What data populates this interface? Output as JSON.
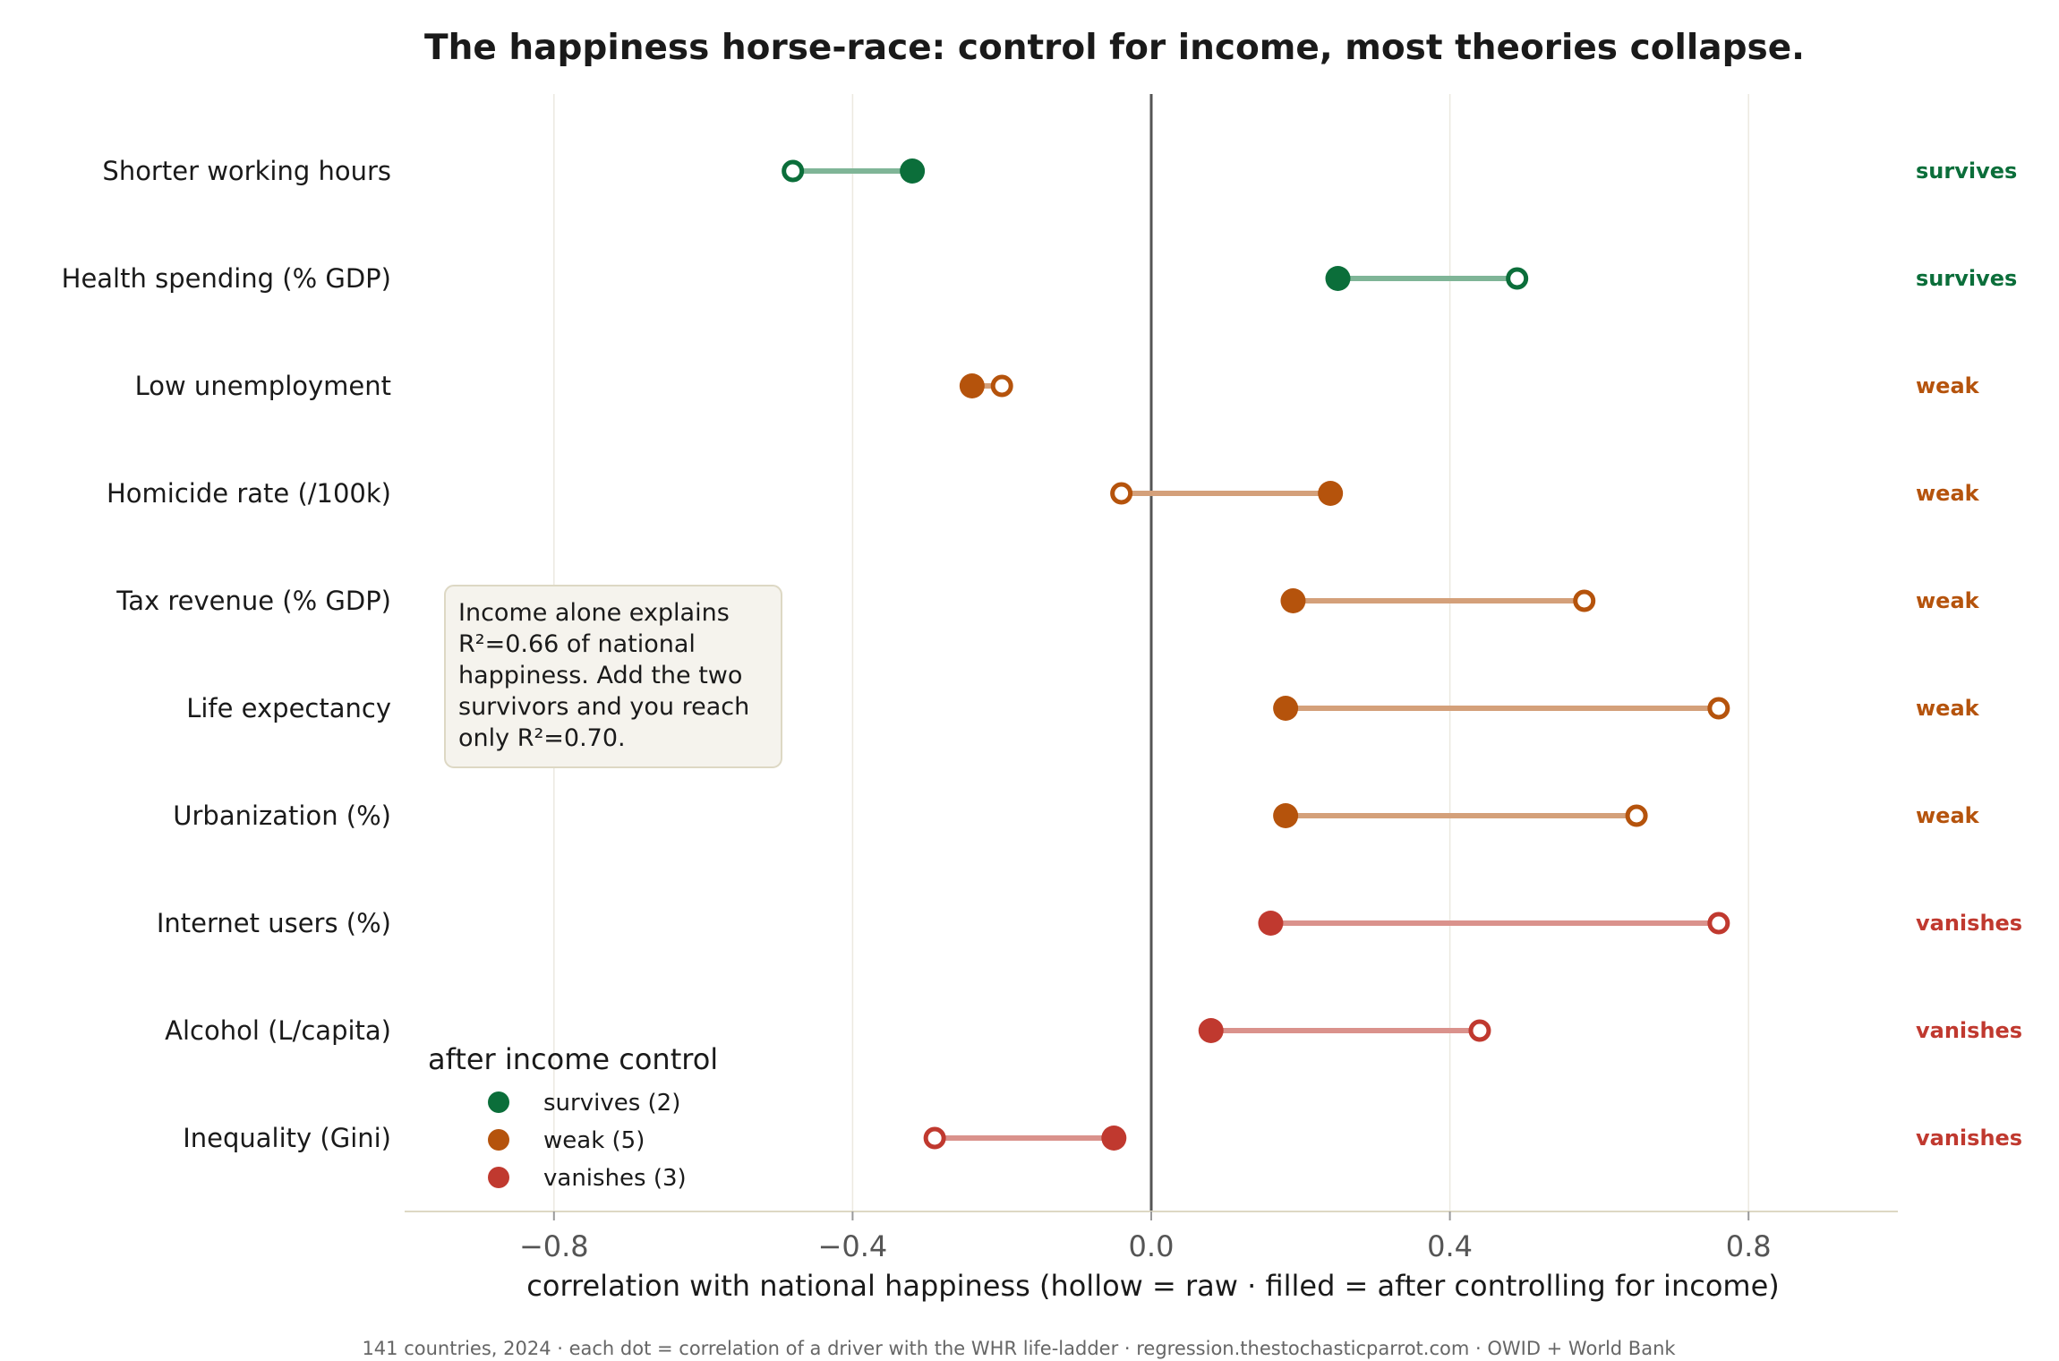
{
  "chart_data": {
    "type": "dumbbell",
    "title": "The happiness horse-race: control for income, most theories collapse.",
    "xlabel": "correlation with national happiness  (hollow = raw · filled = after controlling for income)",
    "xlim": [
      -1.0,
      1.0
    ],
    "x_ticks": [
      -0.8,
      -0.4,
      0.0,
      0.4,
      0.8
    ],
    "x_tick_labels": [
      "−0.8",
      "−0.4",
      "0.0",
      "0.4",
      "0.8"
    ],
    "grid": "vertical",
    "rows": [
      {
        "label": "Shorter working hours",
        "raw": -0.48,
        "controlled": -0.32,
        "status": "survives"
      },
      {
        "label": "Health spending (% GDP)",
        "raw": 0.49,
        "controlled": 0.25,
        "status": "survives"
      },
      {
        "label": "Low unemployment",
        "raw": -0.2,
        "controlled": -0.24,
        "status": "weak"
      },
      {
        "label": "Homicide rate (/100k)",
        "raw": -0.04,
        "controlled": 0.24,
        "status": "weak"
      },
      {
        "label": "Tax revenue (% GDP)",
        "raw": 0.58,
        "controlled": 0.19,
        "status": "weak"
      },
      {
        "label": "Life expectancy",
        "raw": 0.76,
        "controlled": 0.18,
        "status": "weak"
      },
      {
        "label": "Urbanization (%)",
        "raw": 0.65,
        "controlled": 0.18,
        "status": "weak"
      },
      {
        "label": "Internet users (%)",
        "raw": 0.76,
        "controlled": 0.16,
        "status": "vanishes"
      },
      {
        "label": "Alcohol (L/capita)",
        "raw": 0.44,
        "controlled": 0.08,
        "status": "vanishes"
      },
      {
        "label": "Inequality (Gini)",
        "raw": -0.29,
        "controlled": -0.05,
        "status": "vanishes"
      }
    ],
    "status_colors": {
      "survives": "#0b6e3a",
      "weak": "#b5530c",
      "vanishes": "#c0392f"
    },
    "line_colors": {
      "survives": "#7fb597",
      "weak": "#d4a07a",
      "vanishes": "#da928c"
    },
    "legend": {
      "title": "after income control",
      "position": "lower-left",
      "entries": [
        {
          "status": "survives",
          "label": "survives (2)"
        },
        {
          "status": "weak",
          "label": "weak (5)"
        },
        {
          "status": "vanishes",
          "label": "vanishes (3)"
        }
      ]
    },
    "annotation": {
      "lines": [
        "Income alone explains",
        "R²=0.66 of national",
        "happiness. Add the two",
        "survivors and you reach",
        "only R²=0.70."
      ]
    },
    "footer": "141 countries, 2024 · each dot = correlation of a driver with the WHR life-ladder · regression.thestochasticparrot.com · OWID + World Bank"
  }
}
